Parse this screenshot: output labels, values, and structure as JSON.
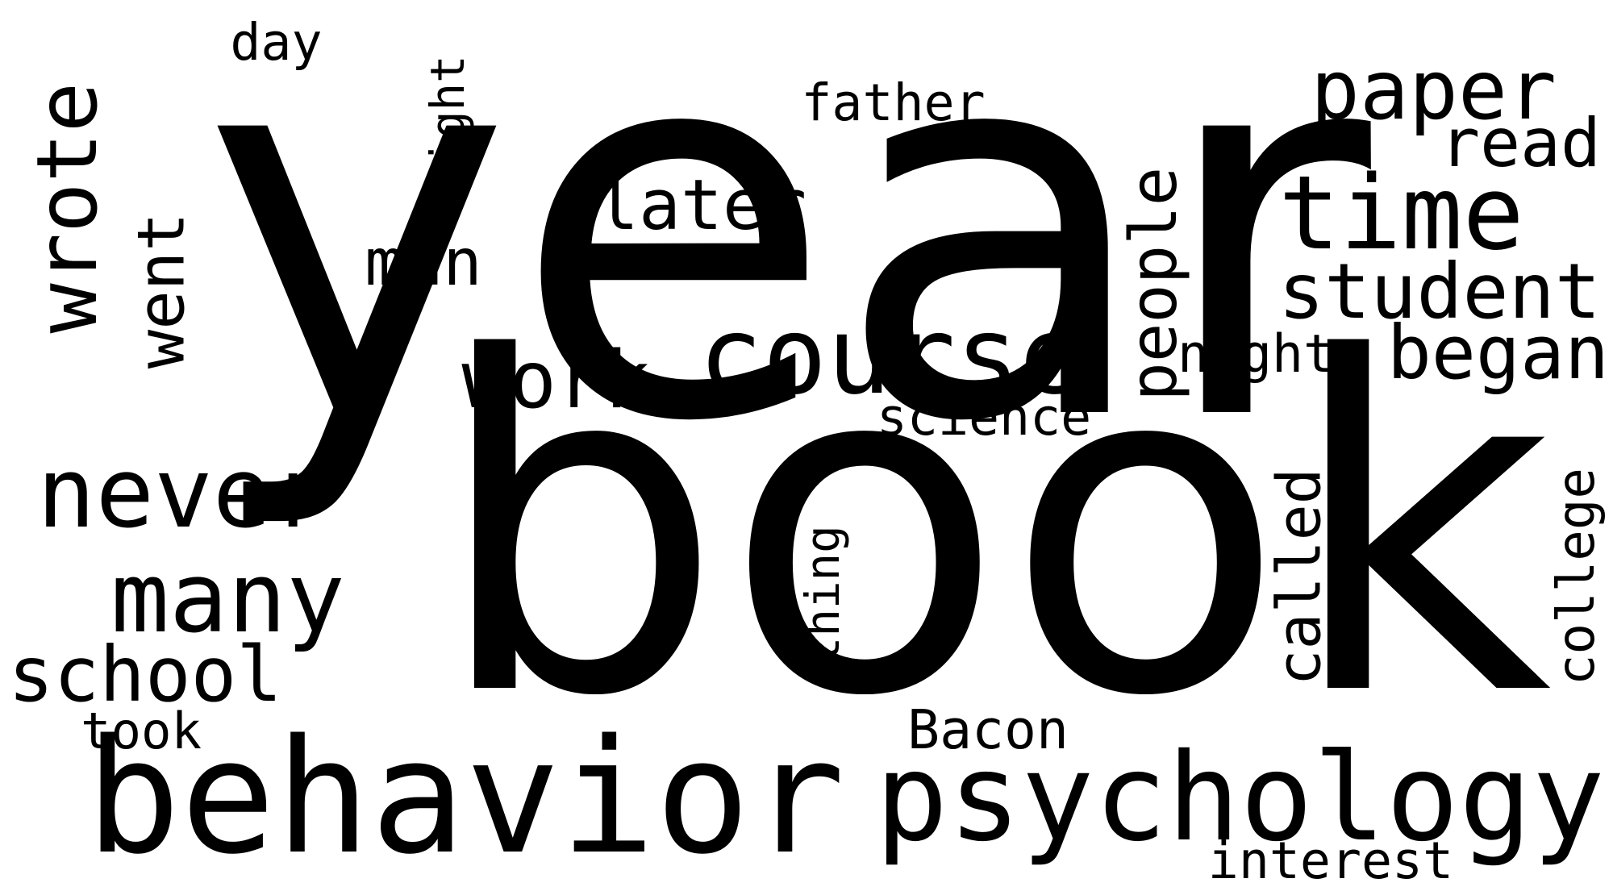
{
  "background": "#ffffff",
  "text_color": "#000000",
  "words": {
    "year": "year",
    "book": "book",
    "behavior": "behavior",
    "psychology": "psychology",
    "course": "course",
    "never": "never",
    "many": "many",
    "wrote": "wrote",
    "went": "went",
    "time": "time",
    "paper": "paper",
    "student": "student",
    "began": "began",
    "work": "work",
    "people": "people",
    "later": "later",
    "school": "school",
    "called": "called",
    "man": "man",
    "read": "read",
    "father": "father",
    "day": "day",
    "right": "right",
    "night": "night",
    "science": "science",
    "college": "college",
    "thing": "thing",
    "took": "took",
    "bacon": "Bacon",
    "interest": "interest"
  }
}
